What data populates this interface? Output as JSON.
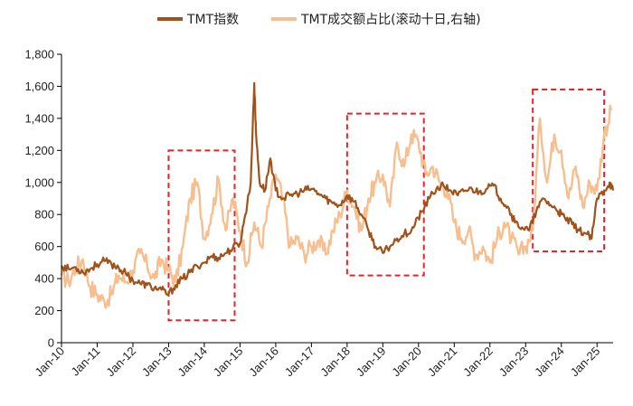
{
  "chart_data": {
    "type": "line",
    "title": "",
    "xlabel": "",
    "ylabel": "",
    "ylim": [
      0,
      1800
    ],
    "y_ticks": [
      "0",
      "200",
      "400",
      "600",
      "800",
      "1,000",
      "1,200",
      "1,400",
      "1,600",
      "1,800"
    ],
    "y_tick_values": [
      0,
      200,
      400,
      600,
      800,
      1000,
      1200,
      1400,
      1600,
      1800
    ],
    "x_ticks": [
      "Jan-10",
      "Jan-11",
      "Jan-12",
      "Jan-13",
      "Jan-14",
      "Jan-15",
      "Jan-16",
      "Jan-17",
      "Jan-18",
      "Jan-19",
      "Jan-20",
      "Jan-21",
      "Jan-22",
      "Jan-23",
      "Jan-24",
      "Jan-25"
    ],
    "x_tick_values": [
      2010,
      2011,
      2012,
      2013,
      2014,
      2015,
      2016,
      2017,
      2018,
      2019,
      2020,
      2021,
      2022,
      2023,
      2024,
      2025
    ],
    "xlim": [
      2010,
      2025.45
    ],
    "legend_position": "top",
    "series": [
      {
        "name": "TMT指数",
        "color": "#A0521A",
        "x": [
          2010.0,
          2010.2,
          2010.4,
          2010.6,
          2010.8,
          2011.0,
          2011.2,
          2011.4,
          2011.6,
          2011.8,
          2012.0,
          2012.2,
          2012.4,
          2012.6,
          2012.8,
          2013.0,
          2013.2,
          2013.4,
          2013.6,
          2013.8,
          2014.0,
          2014.2,
          2014.4,
          2014.6,
          2014.8,
          2015.0,
          2015.15,
          2015.3,
          2015.4,
          2015.45,
          2015.55,
          2015.7,
          2015.85,
          2016.0,
          2016.2,
          2016.4,
          2016.6,
          2016.8,
          2017.0,
          2017.2,
          2017.4,
          2017.6,
          2017.8,
          2018.0,
          2018.2,
          2018.4,
          2018.6,
          2018.8,
          2019.0,
          2019.2,
          2019.4,
          2019.6,
          2019.8,
          2020.0,
          2020.1,
          2020.3,
          2020.5,
          2020.7,
          2020.9,
          2021.1,
          2021.3,
          2021.5,
          2021.7,
          2021.9,
          2022.1,
          2022.3,
          2022.5,
          2022.7,
          2022.9,
          2023.1,
          2023.3,
          2023.5,
          2023.7,
          2023.9,
          2024.0,
          2024.1,
          2024.3,
          2024.5,
          2024.7,
          2024.85,
          2025.0,
          2025.2,
          2025.35,
          2025.45
        ],
        "values": [
          480,
          460,
          470,
          440,
          460,
          490,
          510,
          490,
          470,
          430,
          390,
          370,
          360,
          340,
          330,
          300,
          360,
          400,
          440,
          480,
          500,
          540,
          530,
          560,
          590,
          620,
          800,
          1000,
          1620,
          1300,
          1000,
          950,
          1150,
          950,
          900,
          920,
          930,
          950,
          960,
          930,
          900,
          870,
          860,
          920,
          880,
          800,
          700,
          600,
          560,
          600,
          650,
          680,
          700,
          780,
          820,
          900,
          960,
          980,
          950,
          920,
          950,
          960,
          940,
          960,
          980,
          900,
          850,
          750,
          720,
          700,
          820,
          900,
          860,
          820,
          800,
          780,
          740,
          700,
          680,
          650,
          900,
          950,
          1000,
          950
        ]
      },
      {
        "name": "TMT成交额占比(滚动十日,右轴)",
        "color": "#F7BF90",
        "x": [
          2010.0,
          2010.2,
          2010.4,
          2010.6,
          2010.8,
          2011.0,
          2011.2,
          2011.4,
          2011.6,
          2011.8,
          2012.0,
          2012.2,
          2012.4,
          2012.6,
          2012.8,
          2013.0,
          2013.2,
          2013.4,
          2013.6,
          2013.8,
          2014.0,
          2014.2,
          2014.4,
          2014.6,
          2014.8,
          2015.0,
          2015.2,
          2015.4,
          2015.6,
          2015.8,
          2016.0,
          2016.2,
          2016.4,
          2016.6,
          2016.8,
          2017.0,
          2017.2,
          2017.4,
          2017.6,
          2017.8,
          2018.0,
          2018.2,
          2018.4,
          2018.6,
          2018.8,
          2019.0,
          2019.2,
          2019.4,
          2019.6,
          2019.8,
          2020.0,
          2020.2,
          2020.4,
          2020.6,
          2020.8,
          2021.0,
          2021.2,
          2021.4,
          2021.6,
          2021.8,
          2022.0,
          2022.2,
          2022.4,
          2022.6,
          2022.8,
          2023.0,
          2023.2,
          2023.4,
          2023.6,
          2023.8,
          2024.0,
          2024.2,
          2024.4,
          2024.6,
          2024.8,
          2025.0,
          2025.2,
          2025.4
        ],
        "values": [
          420,
          380,
          470,
          520,
          350,
          300,
          260,
          300,
          420,
          380,
          450,
          560,
          480,
          400,
          520,
          450,
          380,
          600,
          900,
          1000,
          650,
          800,
          1020,
          700,
          900,
          700,
          500,
          750,
          600,
          850,
          1050,
          900,
          600,
          650,
          550,
          600,
          640,
          550,
          700,
          800,
          950,
          850,
          700,
          900,
          1000,
          1050,
          850,
          1250,
          1100,
          1300,
          1250,
          1050,
          1100,
          1000,
          950,
          750,
          650,
          700,
          550,
          600,
          500,
          650,
          750,
          650,
          550,
          600,
          700,
          1400,
          1000,
          1300,
          1200,
          900,
          1100,
          850,
          1000,
          950,
          1300,
          1450
        ]
      }
    ],
    "annotations": [
      {
        "shape": "dashed-box",
        "x_range": [
          2013.0,
          2014.85
        ],
        "y_range": [
          140,
          1200
        ]
      },
      {
        "shape": "dashed-box",
        "x_range": [
          2018.0,
          2020.15
        ],
        "y_range": [
          420,
          1430
        ]
      },
      {
        "shape": "dashed-box",
        "x_range": [
          2023.2,
          2025.2
        ],
        "y_range": [
          570,
          1580
        ]
      }
    ]
  }
}
